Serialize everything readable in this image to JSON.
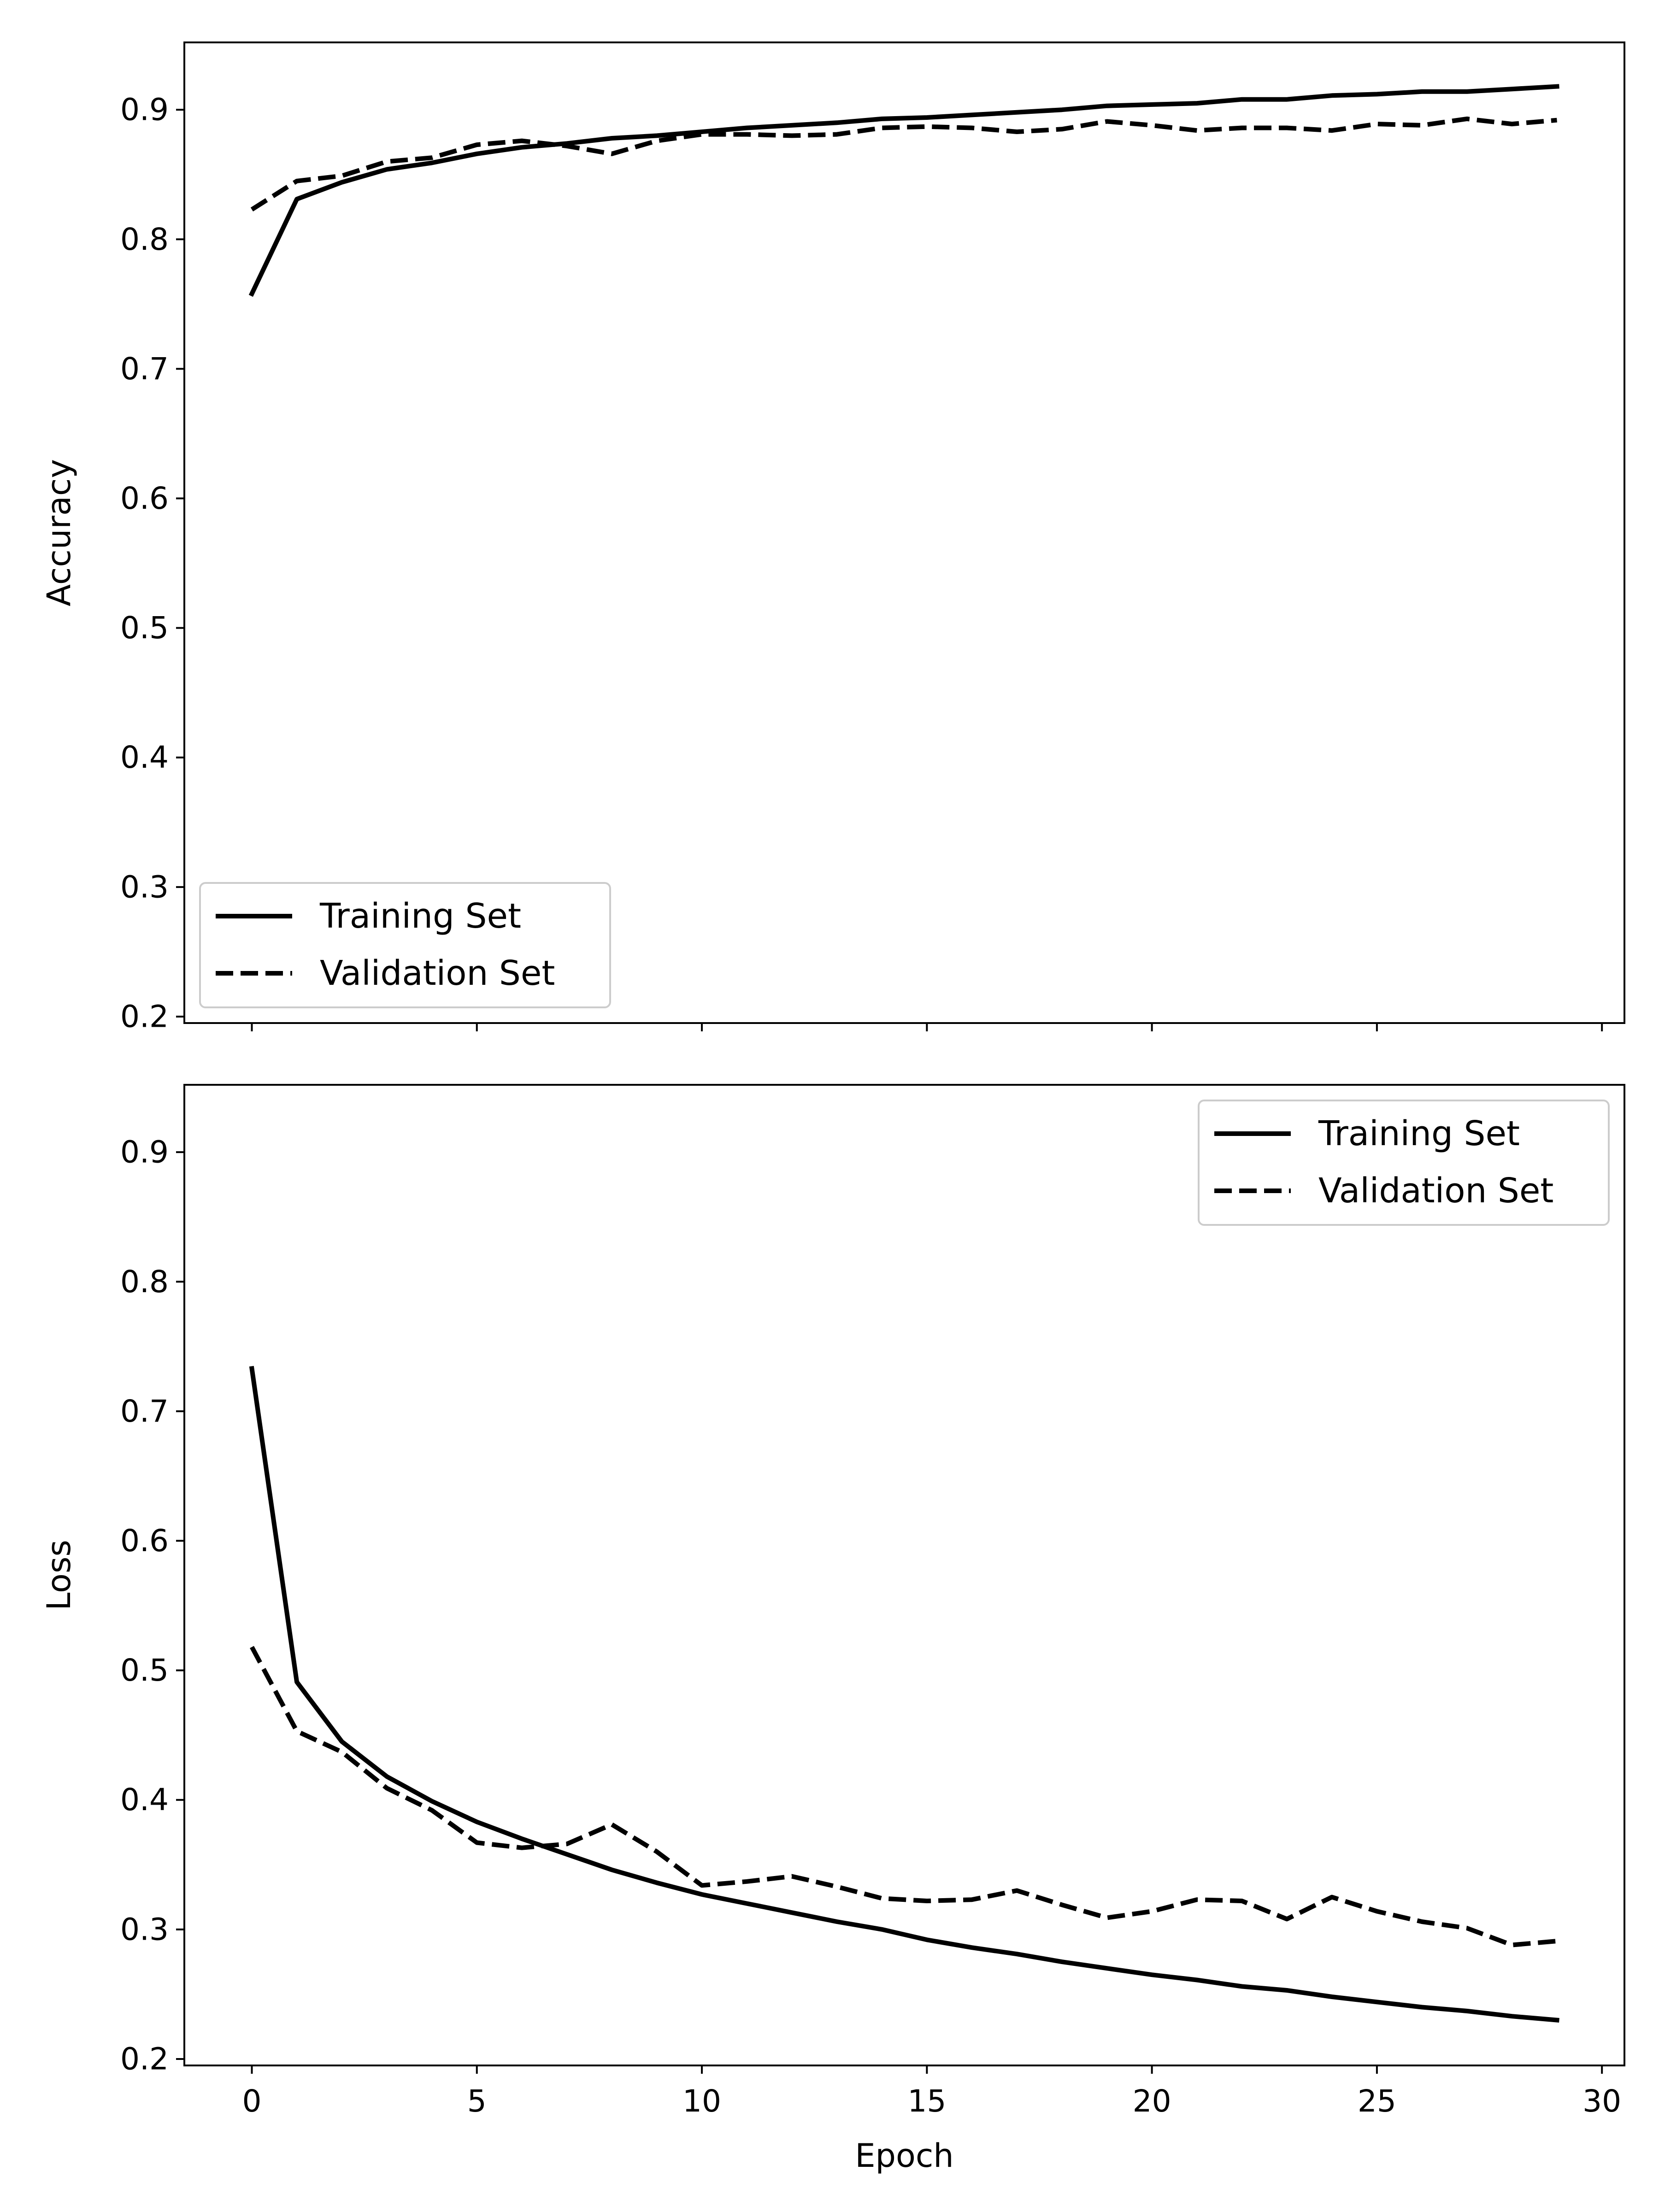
{
  "chart_data": [
    {
      "type": "line",
      "ylabel": "Accuracy",
      "xlabel": "",
      "xlim": [
        -1.5,
        30.5
      ],
      "ylim": [
        0.195,
        0.952
      ],
      "xticks": [
        0,
        5,
        10,
        15,
        20,
        25,
        30
      ],
      "yticks": [
        0.2,
        0.3,
        0.4,
        0.5,
        0.6,
        0.7,
        0.8,
        0.9
      ],
      "ytick_labels": [
        "0.2",
        "0.3",
        "0.4",
        "0.5",
        "0.6",
        "0.7",
        "0.8",
        "0.9"
      ],
      "show_xtick_labels": false,
      "grid": false,
      "legend": "bottom-left",
      "series": [
        {
          "name": "Training Set",
          "style": "solid",
          "color": "#000000",
          "x": [
            0,
            1,
            2,
            3,
            4,
            5,
            6,
            7,
            8,
            9,
            10,
            11,
            12,
            13,
            14,
            15,
            16,
            17,
            18,
            19,
            20,
            21,
            22,
            23,
            24,
            25,
            26,
            27,
            28,
            29
          ],
          "y": [
            0.758,
            0.831,
            0.844,
            0.854,
            0.859,
            0.866,
            0.871,
            0.874,
            0.878,
            0.88,
            0.883,
            0.886,
            0.888,
            0.89,
            0.893,
            0.894,
            0.896,
            0.898,
            0.9,
            0.903,
            0.904,
            0.905,
            0.908,
            0.908,
            0.911,
            0.912,
            0.914,
            0.914,
            0.916,
            0.918
          ]
        },
        {
          "name": "Validation Set",
          "style": "dashed",
          "color": "#000000",
          "x": [
            0,
            1,
            2,
            3,
            4,
            5,
            6,
            7,
            8,
            9,
            10,
            11,
            12,
            13,
            14,
            15,
            16,
            17,
            18,
            19,
            20,
            21,
            22,
            23,
            24,
            25,
            26,
            27,
            28,
            29
          ],
          "y": [
            0.823,
            0.845,
            0.849,
            0.86,
            0.863,
            0.873,
            0.876,
            0.872,
            0.866,
            0.876,
            0.881,
            0.881,
            0.88,
            0.881,
            0.886,
            0.887,
            0.886,
            0.883,
            0.885,
            0.891,
            0.888,
            0.884,
            0.886,
            0.886,
            0.884,
            0.889,
            0.888,
            0.893,
            0.889,
            0.892
          ]
        }
      ]
    },
    {
      "type": "line",
      "ylabel": "Loss",
      "xlabel": "Epoch",
      "xlim": [
        -1.5,
        30.5
      ],
      "ylim": [
        0.195,
        0.952
      ],
      "xticks": [
        0,
        5,
        10,
        15,
        20,
        25,
        30
      ],
      "xtick_labels": [
        "0",
        "5",
        "10",
        "15",
        "20",
        "25",
        "30"
      ],
      "yticks": [
        0.2,
        0.3,
        0.4,
        0.5,
        0.6,
        0.7,
        0.8,
        0.9
      ],
      "ytick_labels": [
        "0.2",
        "0.3",
        "0.4",
        "0.5",
        "0.6",
        "0.7",
        "0.8",
        "0.9"
      ],
      "show_xtick_labels": true,
      "grid": false,
      "legend": "top-right",
      "series": [
        {
          "name": "Training Set",
          "style": "solid",
          "color": "#000000",
          "x": [
            0,
            1,
            2,
            3,
            4,
            5,
            6,
            7,
            8,
            9,
            10,
            11,
            12,
            13,
            14,
            15,
            16,
            17,
            18,
            19,
            20,
            21,
            22,
            23,
            24,
            25,
            26,
            27,
            28,
            29
          ],
          "y": [
            0.733,
            0.491,
            0.445,
            0.418,
            0.399,
            0.383,
            0.37,
            0.358,
            0.346,
            0.336,
            0.327,
            0.32,
            0.313,
            0.306,
            0.3,
            0.292,
            0.286,
            0.281,
            0.275,
            0.27,
            0.265,
            0.261,
            0.256,
            0.253,
            0.248,
            0.244,
            0.24,
            0.237,
            0.233,
            0.23
          ]
        },
        {
          "name": "Validation Set",
          "style": "dashed",
          "color": "#000000",
          "x": [
            0,
            1,
            2,
            3,
            4,
            5,
            6,
            7,
            8,
            9,
            10,
            11,
            12,
            13,
            14,
            15,
            16,
            17,
            18,
            19,
            20,
            21,
            22,
            23,
            24,
            25,
            26,
            27,
            28,
            29
          ],
          "y": [
            0.518,
            0.453,
            0.437,
            0.409,
            0.392,
            0.367,
            0.363,
            0.366,
            0.381,
            0.36,
            0.334,
            0.337,
            0.341,
            0.333,
            0.324,
            0.322,
            0.323,
            0.33,
            0.319,
            0.309,
            0.314,
            0.323,
            0.322,
            0.308,
            0.325,
            0.314,
            0.306,
            0.301,
            0.288,
            0.291
          ]
        }
      ]
    }
  ]
}
